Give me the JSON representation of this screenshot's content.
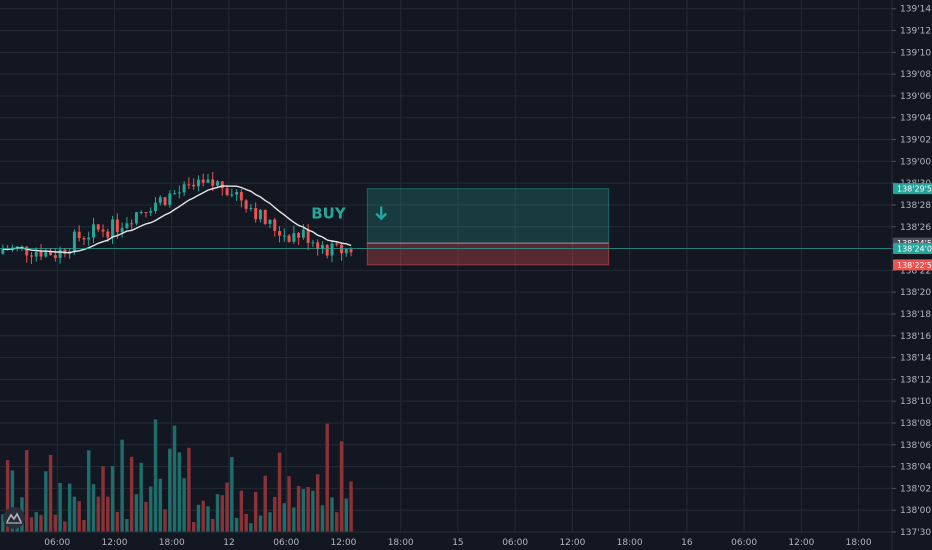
{
  "chart_data": {
    "type": "candlestick",
    "colors": {
      "background": "#131722",
      "grid": "#262a35",
      "up": "#26a69a",
      "down": "#ef5350",
      "volume_up": "#1f6d6a",
      "volume_down": "#8a3236",
      "ma_line": "#e6e6e6",
      "current_line": "#26a69a"
    },
    "y_axis": {
      "min": 137.9375,
      "max": 139.4625,
      "ticks": [
        {
          "v": 139.4375,
          "label": "139'14'0"
        },
        {
          "v": 139.375,
          "label": "139'12'0"
        },
        {
          "v": 139.3125,
          "label": "139'10'0"
        },
        {
          "v": 139.25,
          "label": "139'08'0"
        },
        {
          "v": 139.1875,
          "label": "139'06'0"
        },
        {
          "v": 139.125,
          "label": "139'04'0"
        },
        {
          "v": 139.0625,
          "label": "139'02'0"
        },
        {
          "v": 139.0,
          "label": "139'00'0"
        },
        {
          "v": 138.9375,
          "label": "138'30'0"
        },
        {
          "v": 138.875,
          "label": "138'28'0"
        },
        {
          "v": 138.8125,
          "label": "138'26'0"
        },
        {
          "v": 138.75,
          "label": "138'24'0"
        },
        {
          "v": 138.6875,
          "label": "138'22'0"
        },
        {
          "v": 138.625,
          "label": "138'20'0"
        },
        {
          "v": 138.5625,
          "label": "138'18'0"
        },
        {
          "v": 138.5,
          "label": "138'16'0"
        },
        {
          "v": 138.4375,
          "label": "138'14'0"
        },
        {
          "v": 138.375,
          "label": "138'12'0"
        },
        {
          "v": 138.3125,
          "label": "138'10'0"
        },
        {
          "v": 138.25,
          "label": "138'08'0"
        },
        {
          "v": 138.1875,
          "label": "138'06'0"
        },
        {
          "v": 138.125,
          "label": "138'04'0"
        },
        {
          "v": 138.0625,
          "label": "138'02'0"
        },
        {
          "v": 138.0,
          "label": "138'00'0"
        },
        {
          "v": 137.9375,
          "label": "137'30'0"
        }
      ],
      "badges": [
        {
          "v": 138.921875,
          "label": "138'29'5",
          "color": "#26a69a"
        },
        {
          "v": 138.765625,
          "label": "138'24'5",
          "color": "#4a4f5c"
        },
        {
          "v": 138.75,
          "label": "138'24'0",
          "color": "#26a69a"
        },
        {
          "v": 138.703125,
          "label": "138'22'5",
          "color": "#ef5350"
        }
      ]
    },
    "x_axis": {
      "start": 0,
      "end": 93.5,
      "ticks": [
        {
          "t": 6,
          "label": "06:00"
        },
        {
          "t": 12,
          "label": "12:00"
        },
        {
          "t": 18,
          "label": "18:00"
        },
        {
          "t": 24,
          "label": "12"
        },
        {
          "t": 30,
          "label": "06:00"
        },
        {
          "t": 36,
          "label": "12:00"
        },
        {
          "t": 42,
          "label": "18:00"
        },
        {
          "t": 48,
          "label": "15"
        },
        {
          "t": 54,
          "label": "06:00"
        },
        {
          "t": 60,
          "label": "12:00"
        },
        {
          "t": 66,
          "label": "18:00"
        },
        {
          "t": 72,
          "label": "16"
        },
        {
          "t": 78,
          "label": "06:00"
        },
        {
          "t": 84,
          "label": "12:00"
        },
        {
          "t": 90,
          "label": "18:00"
        }
      ]
    },
    "current_price": 138.75,
    "buy_label": "BUY",
    "position": {
      "entry": 138.765625,
      "target": 138.921875,
      "stop": 138.703125,
      "start_t": 38.5,
      "end_t": 63.8
    }
  }
}
